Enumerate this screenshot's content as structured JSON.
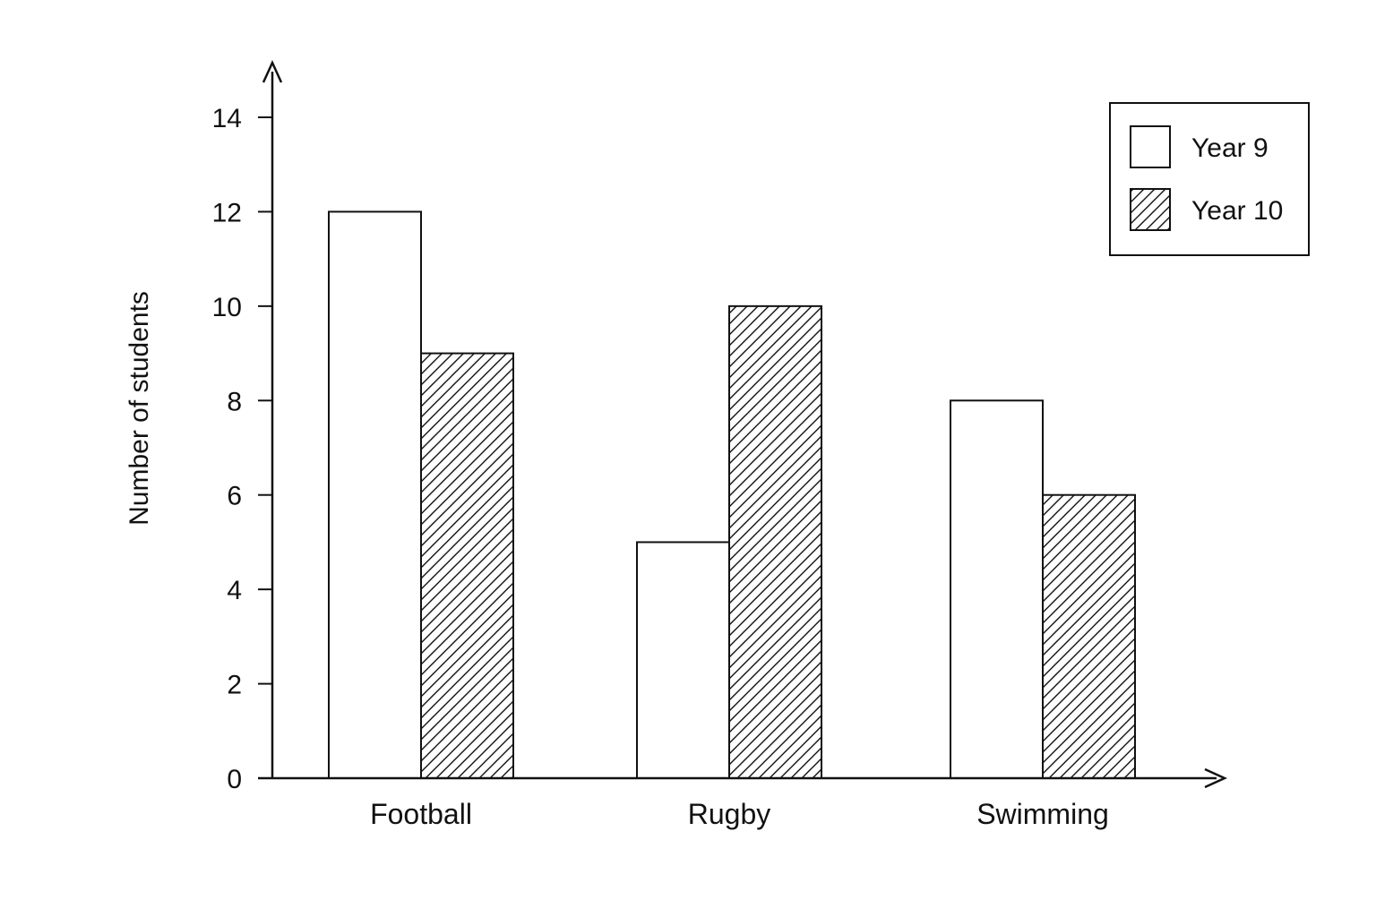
{
  "chart_data": {
    "type": "bar",
    "categories": [
      "Football",
      "Rugby",
      "Swimming"
    ],
    "series": [
      {
        "name": "Year 9",
        "values": [
          12,
          5,
          8
        ],
        "fill": "plain"
      },
      {
        "name": "Year 10",
        "values": [
          9,
          10,
          6
        ],
        "fill": "hatched"
      }
    ],
    "xlabel": "",
    "ylabel": "Number of students",
    "ylim": [
      0,
      14
    ],
    "yticks": [
      "0",
      "2",
      "4",
      "6",
      "8",
      "10",
      "12",
      "14"
    ],
    "grid": false,
    "legend_position": "top-right",
    "colors": {
      "stroke": "#111111",
      "fill": "#ffffff"
    }
  }
}
